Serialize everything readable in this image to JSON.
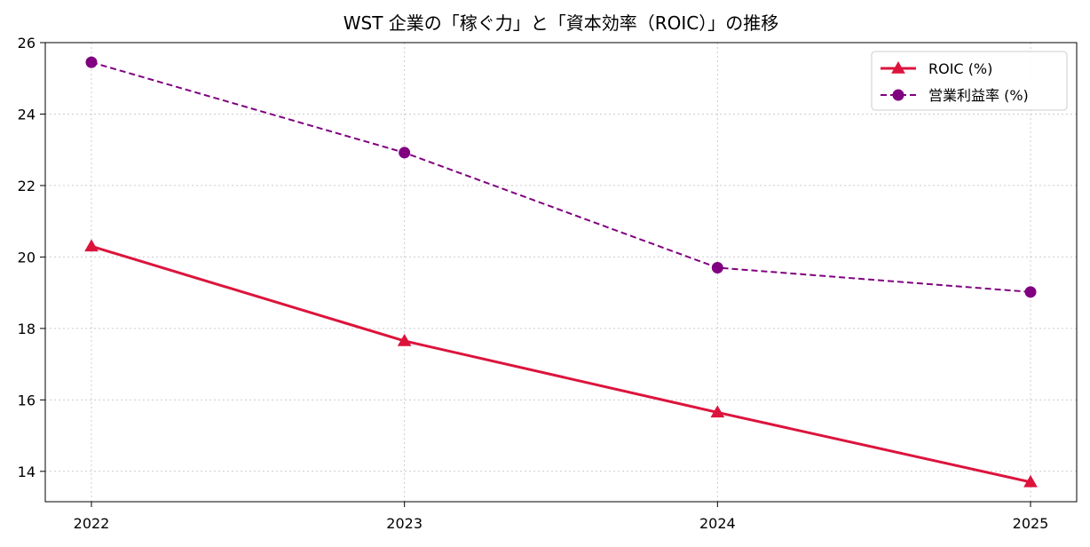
{
  "chart_data": {
    "type": "line",
    "title": "WST 企業の「稼ぐ力」と「資本効率（ROIC）」の推移",
    "xlabel": "",
    "ylabel": "",
    "x": [
      "2022",
      "2023",
      "2024",
      "2025"
    ],
    "ylim": [
      13.15,
      26
    ],
    "yticks": [
      14,
      16,
      18,
      20,
      22,
      24,
      26
    ],
    "grid": true,
    "legend_position": "top-right",
    "series": [
      {
        "name": "ROIC (%)",
        "values": [
          20.3,
          17.65,
          15.65,
          13.7
        ],
        "color": "#dc143c",
        "line_style": "solid",
        "marker": "triangle"
      },
      {
        "name": "営業利益率 (%)",
        "values": [
          25.45,
          22.92,
          19.7,
          19.02
        ],
        "color": "#800080",
        "line_style": "dashed",
        "marker": "circle"
      }
    ]
  }
}
